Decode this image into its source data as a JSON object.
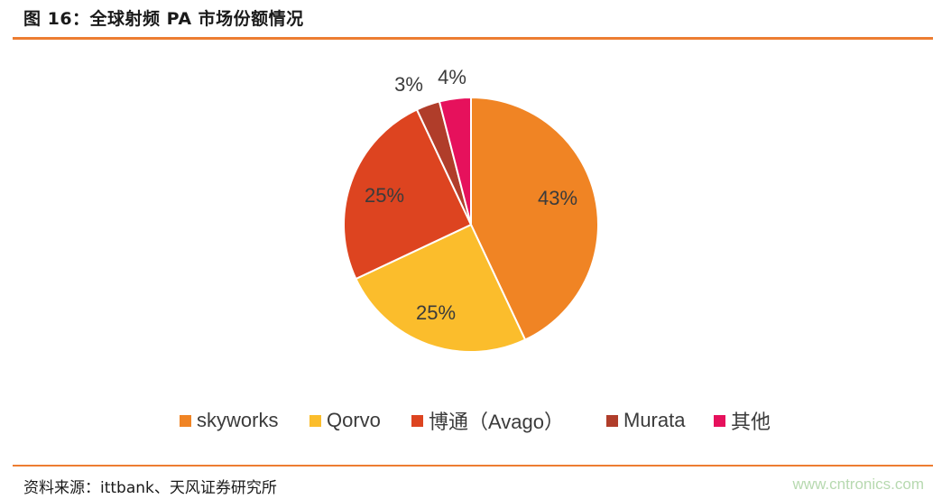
{
  "header": {
    "title": "图 16：全球射频 PA 市场份额情况"
  },
  "chart_data": {
    "type": "pie",
    "title": "",
    "slices": [
      {
        "name": "skyworks",
        "value": 43,
        "label": "43%",
        "color": "#f08424"
      },
      {
        "name": "Qorvo",
        "value": 25,
        "label": "25%",
        "color": "#fbbd2c"
      },
      {
        "name": "博通（Avago）",
        "value": 25,
        "label": "25%",
        "color": "#dd4420"
      },
      {
        "name": "Murata",
        "value": 3,
        "label": "3%",
        "color": "#b03d2a"
      },
      {
        "name": "其他",
        "value": 4,
        "label": "4%",
        "color": "#e6115c"
      }
    ],
    "start_angle_deg": 0,
    "direction": "clockwise",
    "legend_position": "bottom"
  },
  "footer": {
    "source": "资料来源：ittbank、天风证券研究所",
    "watermark": "www.cntronics.com"
  },
  "colors": {
    "accent_rule": "#ed7d31",
    "text": "#3b3b3b"
  }
}
